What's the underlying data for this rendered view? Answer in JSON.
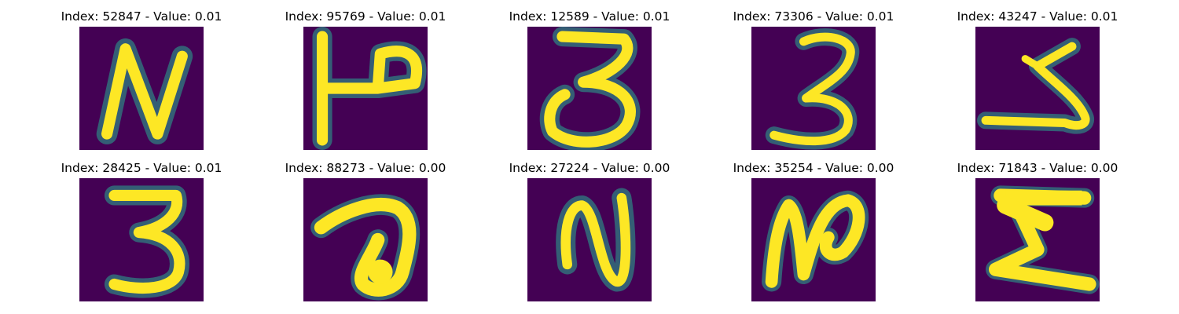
{
  "chart_data": {
    "type": "image-grid",
    "title": "",
    "rows": 2,
    "cols": 5,
    "colormap": "viridis",
    "colors": {
      "background": "#440154",
      "stroke": "#fde725",
      "edge": "#2a9d8c",
      "title_text": "#000000"
    },
    "panels": [
      {
        "title": "Index: 52847 - Value: 0.01",
        "index": 52847,
        "value": 0.01,
        "glyph": "N-shape",
        "glyph_icon": "handwritten-n-glyph"
      },
      {
        "title": "Index: 95769 - Value: 0.01",
        "index": 95769,
        "value": 0.01,
        "glyph": "H-hook-shape",
        "glyph_icon": "handwritten-h-glyph"
      },
      {
        "title": "Index: 12589 - Value: 0.01",
        "index": 12589,
        "value": 0.01,
        "glyph": "3-shape",
        "glyph_icon": "handwritten-3-glyph"
      },
      {
        "title": "Index: 73306 - Value: 0.01",
        "index": 73306,
        "value": 0.01,
        "glyph": "3-shape",
        "glyph_icon": "handwritten-3-glyph"
      },
      {
        "title": "Index: 43247 - Value: 0.01",
        "index": 43247,
        "value": 0.01,
        "glyph": "5-like-shape",
        "glyph_icon": "handwritten-5-glyph"
      },
      {
        "title": "Index: 28425 - Value: 0.01",
        "index": 28425,
        "value": 0.01,
        "glyph": "3-shape",
        "glyph_icon": "handwritten-3-glyph"
      },
      {
        "title": "Index: 88273 - Value: 0.00",
        "index": 88273,
        "value": 0.0,
        "glyph": "7-loop-shape",
        "glyph_icon": "handwritten-7-glyph"
      },
      {
        "title": "Index: 27224 - Value: 0.00",
        "index": 27224,
        "value": 0.0,
        "glyph": "N-shape",
        "glyph_icon": "handwritten-n-glyph"
      },
      {
        "title": "Index: 35254 - Value: 0.00",
        "index": 35254,
        "value": 0.0,
        "glyph": "N-hook-shape",
        "glyph_icon": "handwritten-n-glyph"
      },
      {
        "title": "Index: 71843 - Value: 0.00",
        "index": 71843,
        "value": 0.0,
        "glyph": "Z-shape",
        "glyph_icon": "handwritten-z-glyph"
      }
    ]
  }
}
